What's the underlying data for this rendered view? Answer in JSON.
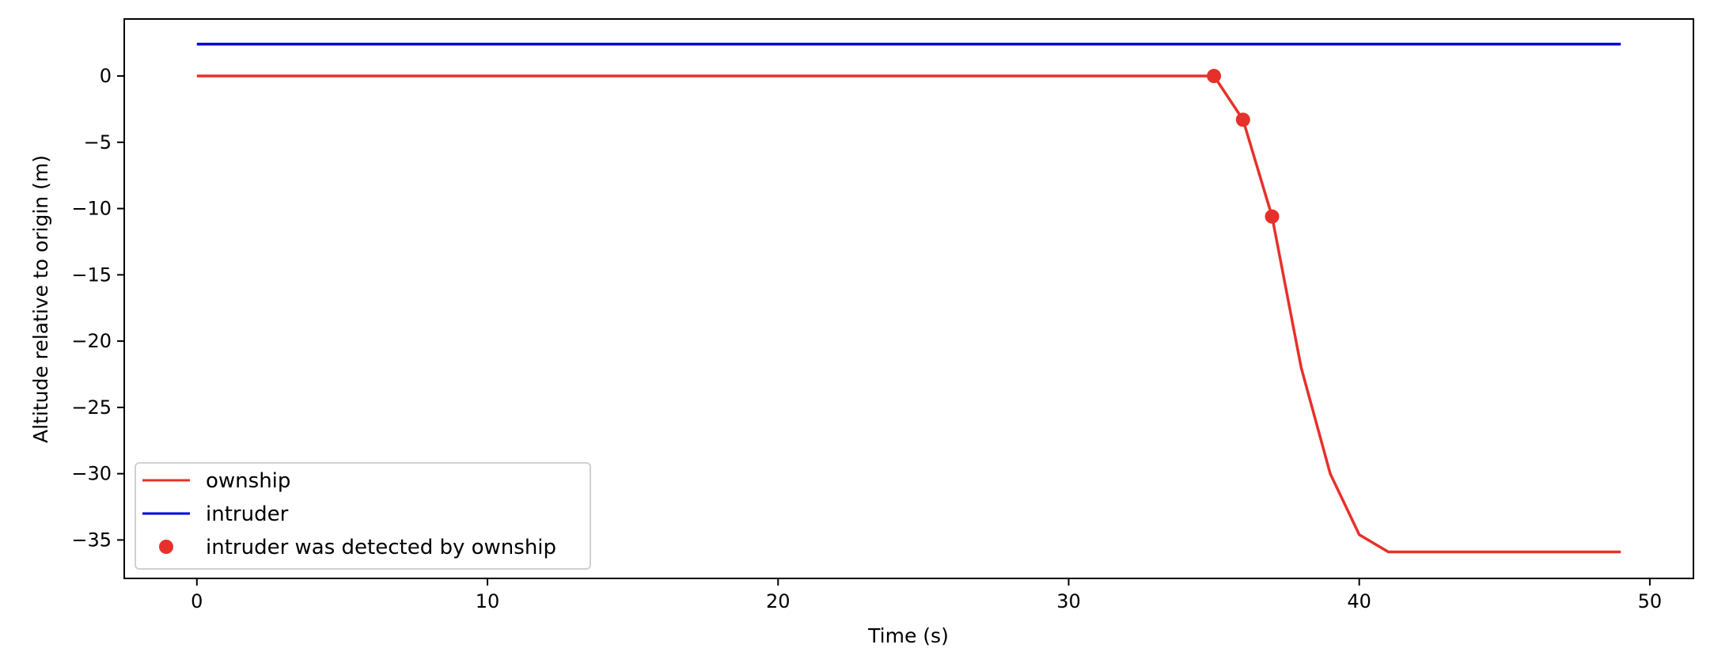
{
  "chart_data": {
    "type": "line",
    "xlabel": "Time (s)",
    "ylabel": "Altitude relative to origin (m)",
    "xlim": [
      -2.5,
      51.5
    ],
    "ylim": [
      -37.9,
      4.3
    ],
    "xticks": [
      0,
      10,
      20,
      30,
      40,
      50
    ],
    "yticks": [
      0,
      -5,
      -10,
      -15,
      -20,
      -25,
      -30,
      -35
    ],
    "xtick_labels": [
      "0",
      "10",
      "20",
      "30",
      "40",
      "50"
    ],
    "ytick_labels": [
      "0",
      "−5",
      "−10",
      "−15",
      "−20",
      "−25",
      "−30",
      "−35"
    ],
    "grid": false,
    "legend_position": "lower-left",
    "series": [
      {
        "name": "ownship",
        "kind": "line",
        "color": "#e8302a",
        "x": [
          0,
          1,
          2,
          3,
          4,
          5,
          6,
          7,
          8,
          9,
          10,
          11,
          12,
          13,
          14,
          15,
          16,
          17,
          18,
          19,
          20,
          21,
          22,
          23,
          24,
          25,
          26,
          27,
          28,
          29,
          30,
          31,
          32,
          33,
          34,
          35,
          36,
          37,
          38,
          39,
          40,
          41,
          42,
          43,
          44,
          45,
          46,
          47,
          48,
          49
        ],
        "y": [
          0,
          0,
          0,
          0,
          0,
          0,
          0,
          0,
          0,
          0,
          0,
          0,
          0,
          0,
          0,
          0,
          0,
          0,
          0,
          0,
          0,
          0,
          0,
          0,
          0,
          0,
          0,
          0,
          0,
          0,
          0,
          0,
          0,
          0,
          0,
          0,
          -3.3,
          -10.6,
          -22,
          -30,
          -34.6,
          -35.9,
          -35.9,
          -35.9,
          -35.9,
          -35.9,
          -35.9,
          -35.9,
          -35.9,
          -35.9
        ]
      },
      {
        "name": "intruder",
        "kind": "line",
        "color": "#0000dd",
        "x": [
          0,
          49
        ],
        "y": [
          2.4,
          2.4
        ]
      },
      {
        "name": "intruder was detected by ownship",
        "kind": "scatter",
        "color": "#e8302a",
        "x": [
          35,
          36,
          37
        ],
        "y": [
          0,
          -3.3,
          -10.6
        ]
      }
    ]
  }
}
